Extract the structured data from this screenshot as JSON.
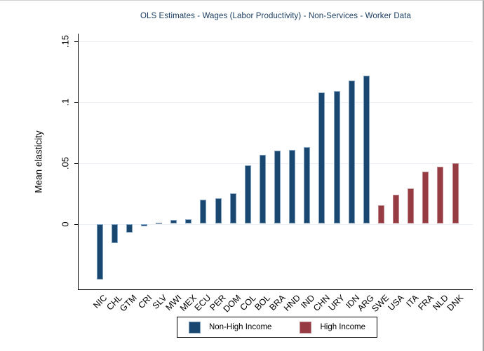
{
  "chart_data": {
    "type": "bar",
    "title": "OLS Estimates - Wages (Labor Productivity) - Non-Services - Worker Data",
    "title_color": "#1b3e62",
    "ylabel": "Mean elasticity",
    "xlabel": "",
    "grid": true,
    "ylim": [
      -0.055,
      0.158
    ],
    "yticks": [
      {
        "label": "0",
        "value": 0
      },
      {
        "label": ".05",
        "value": 0.05
      },
      {
        "label": ".1",
        "value": 0.1
      },
      {
        "label": ".15",
        "value": 0.15
      }
    ],
    "legend": {
      "position": "bottom-center",
      "entries": [
        {
          "label": "Non-High Income",
          "color": "#1a476f",
          "border": "#82a3c2"
        },
        {
          "label": "High Income",
          "color": "#953b41",
          "border": "#bf888c"
        }
      ]
    },
    "bars": [
      {
        "label": "NIC",
        "value": -0.046,
        "group": "Non-High Income"
      },
      {
        "label": "CHL",
        "value": -0.016,
        "group": "Non-High Income"
      },
      {
        "label": "GTM",
        "value": -0.007,
        "group": "Non-High Income"
      },
      {
        "label": "CRI",
        "value": -0.002,
        "group": "Non-High Income"
      },
      {
        "label": "SLV",
        "value": 0.001,
        "group": "Non-High Income"
      },
      {
        "label": "MWI",
        "value": 0.003,
        "group": "Non-High Income"
      },
      {
        "label": "MEX",
        "value": 0.004,
        "group": "Non-High Income"
      },
      {
        "label": "ECU",
        "value": 0.02,
        "group": "Non-High Income"
      },
      {
        "label": "PER",
        "value": 0.021,
        "group": "Non-High Income"
      },
      {
        "label": "DOM",
        "value": 0.025,
        "group": "Non-High Income"
      },
      {
        "label": "COL",
        "value": 0.048,
        "group": "Non-High Income"
      },
      {
        "label": "BOL",
        "value": 0.057,
        "group": "Non-High Income"
      },
      {
        "label": "BRA",
        "value": 0.06,
        "group": "Non-High Income"
      },
      {
        "label": "HND",
        "value": 0.061,
        "group": "Non-High Income"
      },
      {
        "label": "IND",
        "value": 0.063,
        "group": "Non-High Income"
      },
      {
        "label": "CHN",
        "value": 0.108,
        "group": "Non-High Income"
      },
      {
        "label": "URY",
        "value": 0.109,
        "group": "Non-High Income"
      },
      {
        "label": "IDN",
        "value": 0.118,
        "group": "Non-High Income"
      },
      {
        "label": "ARG",
        "value": 0.122,
        "group": "Non-High Income"
      },
      {
        "label": "SWE",
        "value": 0.015,
        "group": "High Income"
      },
      {
        "label": "USA",
        "value": 0.024,
        "group": "High Income"
      },
      {
        "label": "ITA",
        "value": 0.029,
        "group": "High Income"
      },
      {
        "label": "FRA",
        "value": 0.043,
        "group": "High Income"
      },
      {
        "label": "NLD",
        "value": 0.047,
        "group": "High Income"
      },
      {
        "label": "DNK",
        "value": 0.05,
        "group": "High Income"
      }
    ]
  }
}
